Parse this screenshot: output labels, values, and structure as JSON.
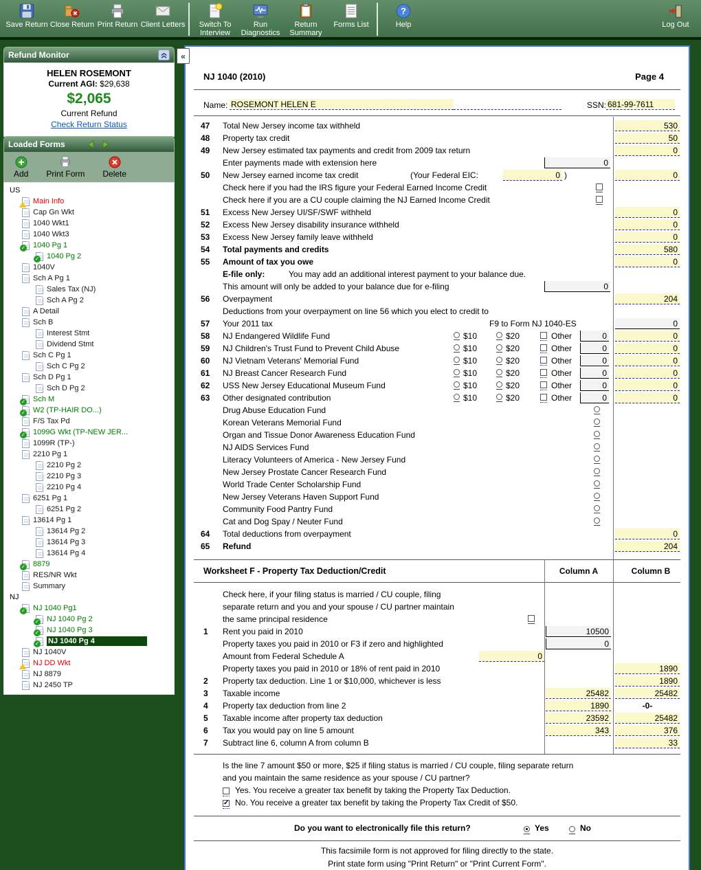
{
  "colors": {
    "accent_green": "#007d00",
    "refund_green": "#1e8a1e",
    "field_yellow": "#fbf8cb",
    "selected_row_bg": "#0c470c",
    "link_blue": "#0a58c8",
    "toolbar_green": "#41704a"
  },
  "toolbar": {
    "buttons": [
      "Save Return",
      "Close Return",
      "Print Return",
      "Client Letters",
      "Switch To Interview",
      "Run Diagnostics",
      "Return Summary",
      "Forms List",
      "Help",
      "Log Out"
    ]
  },
  "refund_monitor": {
    "title": "Refund Monitor",
    "name": "HELEN ROSEMONT",
    "agi_label": "Current AGI:",
    "agi_value": "$29,638",
    "amount": "$2,065",
    "amount_label": "Current Refund",
    "link": "Check Return Status"
  },
  "loaded_forms": {
    "title": "Loaded Forms",
    "buttons": [
      "Add",
      "Print Form",
      "Delete"
    ],
    "tree": [
      {
        "label": "US",
        "lvl": 0,
        "icon": "none",
        "style": "section"
      },
      {
        "label": "Main Info",
        "lvl": 1,
        "icon": "warn",
        "style": "red"
      },
      {
        "label": "Cap Gn Wkt",
        "lvl": 1,
        "icon": "doc"
      },
      {
        "label": "1040 Wkt1",
        "lvl": 1,
        "icon": "doc"
      },
      {
        "label": "1040 Wkt3",
        "lvl": 1,
        "icon": "doc"
      },
      {
        "label": "1040 Pg 1",
        "lvl": 1,
        "icon": "check",
        "style": "green"
      },
      {
        "label": "1040 Pg 2",
        "lvl": 2,
        "icon": "check",
        "style": "green"
      },
      {
        "label": "1040V",
        "lvl": 1,
        "icon": "doc"
      },
      {
        "label": "Sch A Pg 1",
        "lvl": 1,
        "icon": "doc"
      },
      {
        "label": "Sales Tax (NJ)",
        "lvl": 2,
        "icon": "doc"
      },
      {
        "label": "Sch A Pg 2",
        "lvl": 2,
        "icon": "doc"
      },
      {
        "label": "A Detail",
        "lvl": 1,
        "icon": "doc"
      },
      {
        "label": "Sch B",
        "lvl": 1,
        "icon": "doc"
      },
      {
        "label": "Interest Stmt",
        "lvl": 2,
        "icon": "doc"
      },
      {
        "label": "Dividend Stmt",
        "lvl": 2,
        "icon": "doc"
      },
      {
        "label": "Sch C Pg 1",
        "lvl": 1,
        "icon": "doc"
      },
      {
        "label": "Sch C Pg 2",
        "lvl": 2,
        "icon": "doc"
      },
      {
        "label": "Sch D Pg 1",
        "lvl": 1,
        "icon": "doc"
      },
      {
        "label": "Sch D Pg 2",
        "lvl": 2,
        "icon": "doc"
      },
      {
        "label": "Sch M",
        "lvl": 1,
        "icon": "check",
        "style": "green"
      },
      {
        "label": "W2 (TP-HAIR DO...)",
        "lvl": 1,
        "icon": "check",
        "style": "green"
      },
      {
        "label": "F/S Tax Pd",
        "lvl": 1,
        "icon": "doc"
      },
      {
        "label": "1099G Wkt  (TP-NEW JER...",
        "lvl": 1,
        "icon": "check",
        "style": "green"
      },
      {
        "label": "1099R (TP-)",
        "lvl": 1,
        "icon": "doc"
      },
      {
        "label": "2210 Pg 1",
        "lvl": 1,
        "icon": "doc"
      },
      {
        "label": "2210 Pg 2",
        "lvl": 2,
        "icon": "doc"
      },
      {
        "label": "2210 Pg 3",
        "lvl": 2,
        "icon": "doc"
      },
      {
        "label": "2210 Pg 4",
        "lvl": 2,
        "icon": "doc"
      },
      {
        "label": "6251 Pg 1",
        "lvl": 1,
        "icon": "doc"
      },
      {
        "label": "6251 Pg 2",
        "lvl": 2,
        "icon": "doc"
      },
      {
        "label": "13614 Pg 1",
        "lvl": 1,
        "icon": "doc"
      },
      {
        "label": "13614 Pg 2",
        "lvl": 2,
        "icon": "doc"
      },
      {
        "label": "13614 Pg 3",
        "lvl": 2,
        "icon": "doc"
      },
      {
        "label": "13614 Pg 4",
        "lvl": 2,
        "icon": "doc"
      },
      {
        "label": "8879",
        "lvl": 1,
        "icon": "check",
        "style": "green"
      },
      {
        "label": "RES/NR Wkt",
        "lvl": 1,
        "icon": "doc"
      },
      {
        "label": "Summary",
        "lvl": 1,
        "icon": "doc"
      },
      {
        "label": "NJ",
        "lvl": 0,
        "icon": "none",
        "style": "section"
      },
      {
        "label": "NJ 1040 Pg1",
        "lvl": 1,
        "icon": "check",
        "style": "green"
      },
      {
        "label": "NJ 1040 Pg 2",
        "lvl": 2,
        "icon": "check",
        "style": "green"
      },
      {
        "label": "NJ 1040 Pg 3",
        "lvl": 2,
        "icon": "check",
        "style": "green"
      },
      {
        "label": "NJ 1040 Pg 4",
        "lvl": 2,
        "icon": "check",
        "style": "selected"
      },
      {
        "label": "NJ 1040V",
        "lvl": 1,
        "icon": "doc"
      },
      {
        "label": "NJ DD Wkt",
        "lvl": 1,
        "icon": "warn",
        "style": "red"
      },
      {
        "label": "NJ 8879",
        "lvl": 1,
        "icon": "doc"
      },
      {
        "label": "NJ 2450 TP",
        "lvl": 1,
        "icon": "doc"
      }
    ]
  },
  "form": {
    "title": "NJ 1040 (2010)",
    "page": "Page 4",
    "name_label": "Name:",
    "name_value": "ROSEMONT HELEN E",
    "ssn_label": "SSN:",
    "ssn_value": "681-99-7611",
    "lines": [
      {
        "type": "amount",
        "num": "47",
        "label": "Total New Jersey income tax withheld",
        "value": "530",
        "fstyle": "yellow"
      },
      {
        "type": "amount",
        "num": "48",
        "label": "Property tax credit",
        "value": "50",
        "fstyle": "yellow"
      },
      {
        "type": "amount",
        "num": "49",
        "label": "New Jersey estimated tax payments and credit from 2009 tax return",
        "value": "0",
        "fstyle": "yellow"
      },
      {
        "type": "inline",
        "label": "Enter payments made with extension here",
        "value": "0"
      },
      {
        "type": "eic",
        "num": "50",
        "label": "New Jersey earned income tax credit",
        "paren": "(Your Federal EIC:",
        "eic": "0",
        "close": ")",
        "value": "0"
      },
      {
        "type": "check",
        "label": "Check here if you had the IRS figure your Federal Earned Income Credit"
      },
      {
        "type": "check",
        "label": "Check here if you are a CU couple claiming the NJ Earned Income Credit"
      },
      {
        "type": "amount",
        "num": "51",
        "label": "Excess New Jersey UI/SF/SWF withheld",
        "value": "0",
        "fstyle": "yellow"
      },
      {
        "type": "amount",
        "num": "52",
        "label": "Excess New Jersey disability insurance withheld",
        "value": "0",
        "fstyle": "yellow"
      },
      {
        "type": "amount",
        "num": "53",
        "label": "Excess New Jersey family leave withheld",
        "value": "0",
        "fstyle": "yellow"
      },
      {
        "type": "amount",
        "num": "54",
        "label": "Total payments and credits",
        "bold": true,
        "value": "580",
        "fstyle": "yellow"
      },
      {
        "type": "amount",
        "num": "55",
        "label": "Amount of tax you owe",
        "bold": true,
        "value": "0",
        "fstyle": "yellow"
      },
      {
        "type": "note",
        "prefix": "E-file only:",
        "label": "You may add an additional interest payment to your balance due."
      },
      {
        "type": "inline",
        "label": "This amount will only be added to your balance due for e-filing",
        "value": "0"
      },
      {
        "type": "amount",
        "num": "56",
        "label": "Overpayment",
        "value": "204",
        "fstyle": "yellow"
      },
      {
        "type": "text",
        "label": "Deductions from your overpayment on line 56 which you elect to credit to"
      },
      {
        "type": "f9",
        "num": "57",
        "label": "Your 2011 tax",
        "f9": "F9 to Form NJ 1040-ES",
        "value": "0",
        "fstyle": "gray"
      },
      {
        "type": "contrib",
        "num": "58",
        "label": "NJ Endangered Wildlife Fund",
        "opt10": "$10",
        "opt20": "$20",
        "other": "Other",
        "amt": "0",
        "value": "0"
      },
      {
        "type": "contrib",
        "num": "59",
        "label": "NJ Children's Trust Fund to Prevent Child Abuse",
        "opt10": "$10",
        "opt20": "$20",
        "other": "Other",
        "amt": "0",
        "value": "0"
      },
      {
        "type": "contrib",
        "num": "60",
        "label": "NJ Vietnam Veterans' Memorial Fund",
        "opt10": "$10",
        "opt20": "$20",
        "other": "Other",
        "amt": "0",
        "value": "0"
      },
      {
        "type": "contrib",
        "num": "61",
        "label": "NJ Breast Cancer Research Fund",
        "opt10": "$10",
        "opt20": "$20",
        "other": "Other",
        "amt": "0",
        "value": "0"
      },
      {
        "type": "contrib",
        "num": "62",
        "label": "USS New Jersey Educational Museum Fund",
        "opt10": "$10",
        "opt20": "$20",
        "other": "Other",
        "amt": "0",
        "value": "0"
      },
      {
        "type": "contrib",
        "num": "63",
        "label": "Other designated contribution",
        "opt10": "$10",
        "opt20": "$20",
        "other": "Other",
        "amt": "0",
        "value": "0"
      },
      {
        "type": "fund",
        "label": "Drug Abuse Education Fund"
      },
      {
        "type": "fund",
        "label": "Korean Veterans Memorial Fund"
      },
      {
        "type": "fund",
        "label": "Organ and Tissue Donor Awareness Education Fund"
      },
      {
        "type": "fund",
        "label": "NJ AIDS Services Fund"
      },
      {
        "type": "fund",
        "label": "Literacy Volunteers of America - New Jersey Fund"
      },
      {
        "type": "fund",
        "label": "New Jersey Prostate Cancer Research Fund"
      },
      {
        "type": "fund",
        "label": "World Trade Center Scholarship Fund"
      },
      {
        "type": "fund",
        "label": "New Jersey Veterans  Haven Support Fund"
      },
      {
        "type": "fund",
        "label": "Community Food Pantry Fund"
      },
      {
        "type": "fund",
        "label": "Cat and Dog Spay / Neuter Fund"
      },
      {
        "type": "amount",
        "num": "64",
        "label": "Total deductions from overpayment",
        "value": "0",
        "fstyle": "yellow"
      },
      {
        "type": "amount",
        "num": "65",
        "label": "Refund",
        "bold": true,
        "value": "204",
        "fstyle": "yellow"
      }
    ],
    "worksheet": {
      "title": "Worksheet F - Property Tax Deduction/Credit",
      "colA": "Column A",
      "colB": "Column B",
      "rows": [
        {
          "type": "text",
          "label": "Check here,  if your filing status is married / CU couple,  filing"
        },
        {
          "type": "text",
          "label": "separate return and you and your spouse / CU partner maintain"
        },
        {
          "type": "textcheck",
          "label": "the same principal residence"
        },
        {
          "type": "r",
          "num": "1",
          "label": "Rent you paid in 2010",
          "colA": "10500",
          "aStyle": "white"
        },
        {
          "type": "r",
          "label": "Property taxes you paid in 2010 or F3 if zero and highlighted",
          "colA": "0",
          "aStyle": "white"
        },
        {
          "type": "rinline",
          "label": "Amount from Federal Schedule A",
          "inline": "0"
        },
        {
          "type": "r",
          "label": "Property taxes you paid in 2010 or 18% of rent paid in 2010",
          "colB": "1890",
          "bStyle": "yellow"
        },
        {
          "type": "r",
          "num": "2",
          "label": "Property tax deduction.   Line 1 or $10,000,  whichever is less",
          "colB": "1890",
          "bStyle": "yellow"
        },
        {
          "type": "r",
          "num": "3",
          "label": "Taxable income",
          "colA": "25482",
          "aStyle": "yellow",
          "colB": "25482",
          "bStyle": "yellow"
        },
        {
          "type": "r",
          "num": "4",
          "label": "Property tax deduction from line 2",
          "colA": "1890",
          "aStyle": "yellow",
          "colB": "-0-",
          "bStyle": "plain"
        },
        {
          "type": "r",
          "num": "5",
          "label": "Taxable income after property tax deduction",
          "colA": "23592",
          "aStyle": "yellow",
          "colB": "25482",
          "bStyle": "yellow"
        },
        {
          "type": "r",
          "num": "6",
          "label": "Tax you would pay on line 5 amount",
          "colA": "343",
          "aStyle": "yellow",
          "colB": "376",
          "bStyle": "yellow"
        },
        {
          "type": "r",
          "num": "7",
          "label": "Subtract line 6, column A from column B",
          "colB": "33",
          "bStyle": "yellow"
        }
      ]
    },
    "bottom": {
      "q1": "Is the line 7 amount $50 or more,  $25 if filing status is married / CU couple,  filing separate return",
      "q2": "and you maintain the same residence as your spouse / CU partner?",
      "yes_text": "Yes.   You receive a greater tax benefit by taking the Property Tax Deduction.",
      "no_text": "No.   You receive a greater tax benefit by taking the Property Tax Credit of $50.",
      "yes_checked": false,
      "no_checked": true,
      "efile_q": "Do you want to electronically file this return?",
      "efile_yes": "Yes",
      "efile_no": "No",
      "efile_selected": "Yes",
      "footer1": "This facsimile form is not approved for filing directly to the state.",
      "footer2": "Print state form using \"Print Return\" or \"Print Current Form\"."
    }
  }
}
